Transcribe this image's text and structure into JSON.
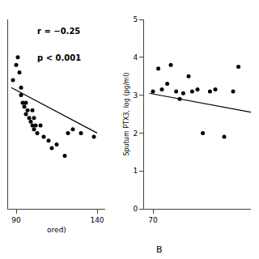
{
  "chart_data": [
    {
      "type": "scatter",
      "xlabel": "ored)",
      "xlim": [
        85,
        145
      ],
      "xticks": [
        90,
        140
      ],
      "ylim": [
        1.5,
        4.0
      ],
      "tick_labels": "x",
      "grid": false,
      "annotations": [
        "r = −0.25",
        "p < 0.001"
      ],
      "series": [
        {
          "type": "scatter",
          "color": "#000000",
          "x": [
            88,
            90,
            91,
            92,
            93,
            93,
            94,
            95,
            96,
            96,
            97,
            98,
            99,
            100,
            100,
            101,
            101,
            102,
            103,
            105,
            107,
            110,
            112,
            115,
            120,
            122,
            125,
            130,
            138
          ],
          "values": [
            3.2,
            3.4,
            3.5,
            3.3,
            3.1,
            3.0,
            2.9,
            2.85,
            2.9,
            2.75,
            2.8,
            2.7,
            2.65,
            2.8,
            2.6,
            2.7,
            2.55,
            2.6,
            2.5,
            2.6,
            2.45,
            2.4,
            2.3,
            2.35,
            2.2,
            2.5,
            2.55,
            2.5,
            2.45
          ]
        },
        {
          "type": "line",
          "color": "#000000",
          "x": [
            87,
            140
          ],
          "values": [
            3.1,
            2.5
          ]
        }
      ]
    },
    {
      "type": "scatter",
      "ylabel": "Sputum PTX3, log (pg/ml)",
      "xlim": [
        65,
        125
      ],
      "xticks": [
        70
      ],
      "ylim": [
        0,
        5
      ],
      "yticks": [
        0,
        1,
        2,
        3,
        4,
        5
      ],
      "grid": false,
      "annotations": [
        "B"
      ],
      "series": [
        {
          "type": "scatter",
          "color": "#000000",
          "x": [
            70,
            73,
            75,
            78,
            80,
            83,
            85,
            87,
            90,
            92,
            95,
            98,
            102,
            105,
            110,
            115,
            118
          ],
          "values": [
            3.1,
            3.7,
            3.15,
            3.3,
            3.8,
            3.1,
            2.9,
            3.05,
            3.5,
            3.1,
            3.15,
            2.0,
            3.1,
            3.15,
            1.9,
            3.1,
            3.75
          ]
        },
        {
          "type": "line",
          "color": "#000000",
          "x": [
            68,
            125
          ],
          "values": [
            3.05,
            2.55
          ]
        }
      ]
    }
  ]
}
